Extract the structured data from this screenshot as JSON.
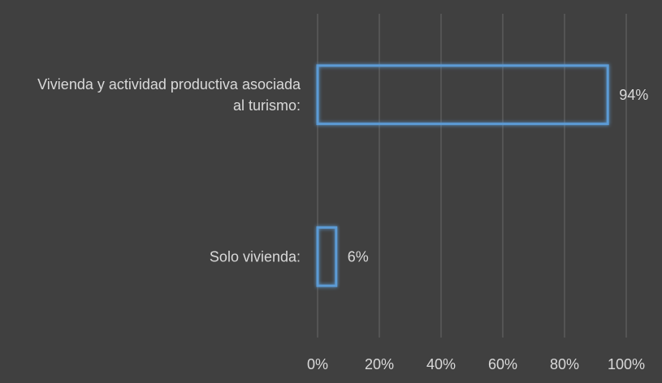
{
  "chart_data": {
    "type": "bar",
    "orientation": "horizontal",
    "categories": [
      [
        "Vivienda y actividad productiva asociada",
        "al turismo:"
      ],
      [
        "Solo vivienda:"
      ]
    ],
    "values": [
      94,
      6
    ],
    "data_labels": [
      "94%",
      "6%"
    ],
    "xlim": [
      0,
      100
    ],
    "x_ticks": [
      0,
      20,
      40,
      60,
      80,
      100
    ],
    "x_tick_labels": [
      "0%",
      "20%",
      "40%",
      "60%",
      "80%",
      "100%"
    ],
    "grid": true,
    "legend": "none",
    "title": "",
    "xlabel": "",
    "ylabel": ""
  },
  "colors": {
    "background": "#404040",
    "gridline": "#5a5a5a",
    "bar_outline": "#5b9bd5",
    "bar_glow": "#3d8fd9",
    "text": "#d9d9d9"
  }
}
